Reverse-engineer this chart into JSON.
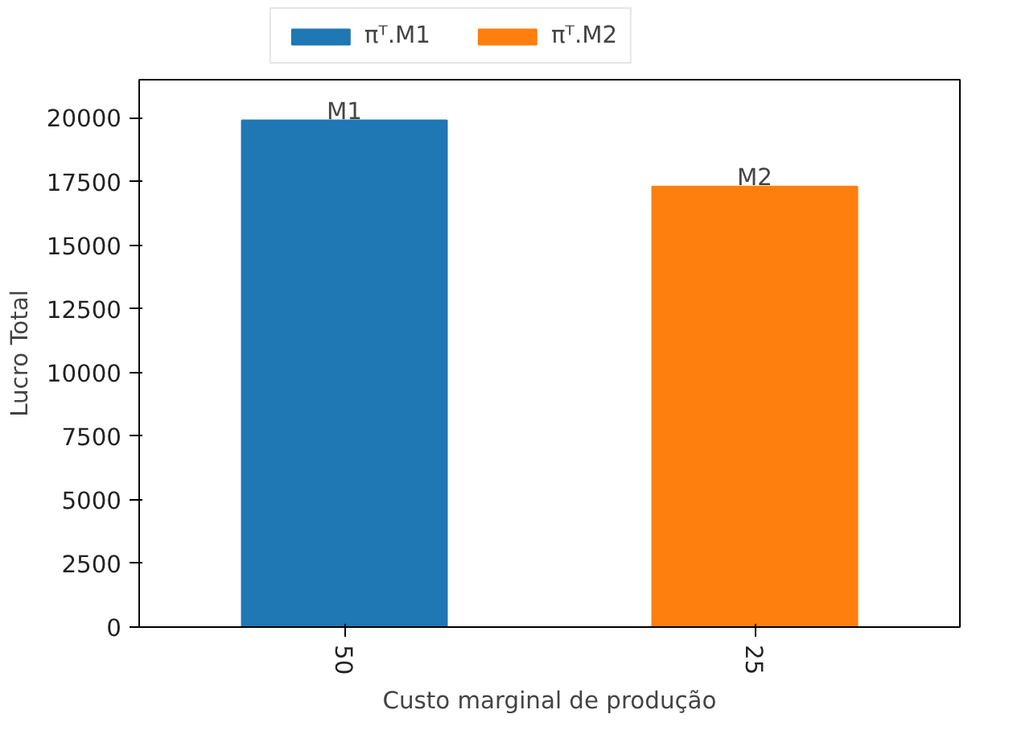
{
  "chart_data": {
    "type": "bar",
    "stacked": true,
    "xlabel": "Custo marginal de produção",
    "ylabel": "Lucro Total",
    "categories": [
      "50",
      "25"
    ],
    "series": [
      {
        "name": "πᵀ.M1",
        "color": "#1f77b4",
        "values": [
          19900,
          null
        ]
      },
      {
        "name": "πᵀ.M2",
        "color": "#ff7f0e",
        "values": [
          null,
          17300
        ]
      }
    ],
    "ylim": [
      0,
      21500
    ],
    "yticks": [
      0,
      2500,
      5000,
      7500,
      10000,
      12500,
      15000,
      17500,
      20000
    ],
    "annotations": [
      {
        "text": "M1",
        "x": "50",
        "y": 19900
      },
      {
        "text": "M2",
        "x": "25",
        "y": 17300
      }
    ],
    "legend": "top",
    "grid": false
  }
}
